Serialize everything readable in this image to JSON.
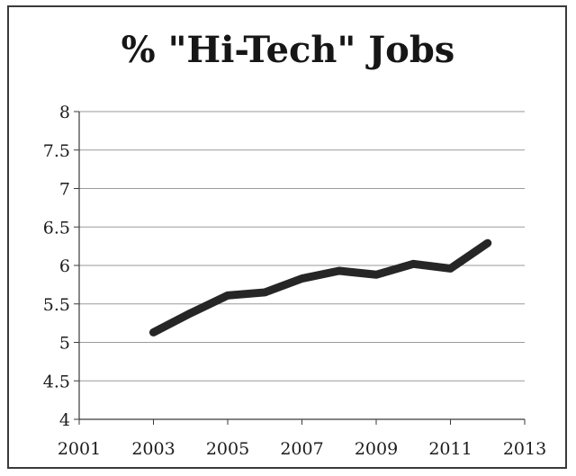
{
  "chart_data": {
    "type": "line",
    "title": "% \"Hi-Tech\" Jobs",
    "xlabel": "",
    "ylabel": "",
    "xlim": [
      2001,
      2013
    ],
    "ylim": [
      4,
      8
    ],
    "x_ticks": [
      2001,
      2003,
      2005,
      2007,
      2009,
      2011,
      2013
    ],
    "y_ticks": [
      4,
      4.5,
      5,
      5.5,
      6,
      6.5,
      7,
      7.5,
      8
    ],
    "y_tick_labels": [
      "4",
      "4.5",
      "5",
      "5.5",
      "6",
      "6.5",
      "7",
      "7.5",
      "8"
    ],
    "grid": true,
    "legend": "none",
    "series": [
      {
        "color": "#262626",
        "x": [
          2003,
          2004,
          2005,
          2006,
          2007,
          2008,
          2009,
          2010,
          2011,
          2012
        ],
        "values": [
          5.13,
          5.38,
          5.61,
          5.65,
          5.83,
          5.93,
          5.88,
          6.02,
          5.96,
          6.29
        ]
      }
    ]
  }
}
